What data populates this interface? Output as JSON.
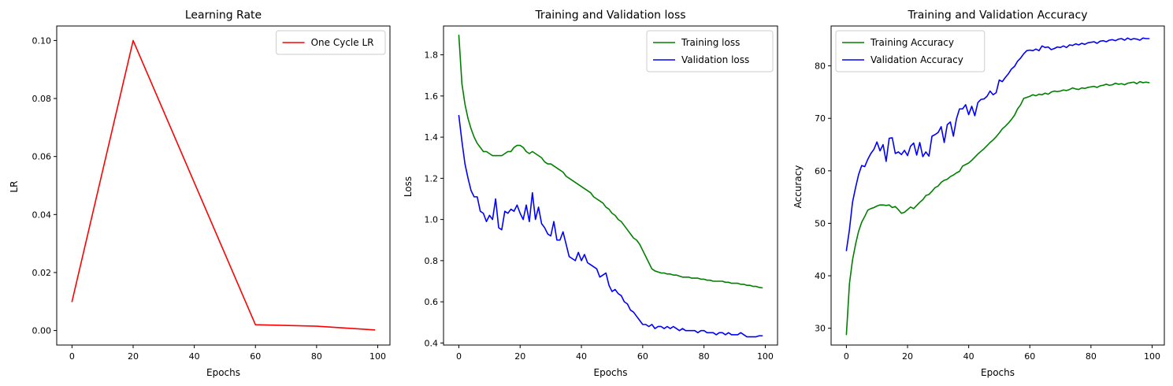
{
  "chart_data": [
    {
      "type": "line",
      "title": "Learning Rate",
      "xlabel": "Epochs",
      "ylabel": "LR",
      "xlim": [
        -5,
        104
      ],
      "ylim": [
        -0.005,
        0.105
      ],
      "xticks": [
        0,
        20,
        40,
        60,
        80,
        100
      ],
      "xtick_labels": [
        "0",
        "20",
        "40",
        "60",
        "80",
        "100"
      ],
      "yticks": [
        0.0,
        0.02,
        0.04,
        0.06,
        0.08,
        0.1
      ],
      "ytick_labels": [
        "0.00",
        "0.02",
        "0.04",
        "0.06",
        "0.08",
        "0.10"
      ],
      "legend_position": "top-right",
      "grid": false,
      "series": [
        {
          "name": "One Cycle LR",
          "color": "#ff0000",
          "x": [
            0,
            20,
            60,
            80,
            99
          ],
          "y": [
            0.01,
            0.1,
            0.002,
            0.0015,
            0.0002
          ]
        }
      ]
    },
    {
      "type": "line",
      "title": "Training and Validation loss",
      "xlabel": "Epochs",
      "ylabel": "Loss",
      "xlim": [
        -5,
        104
      ],
      "ylim": [
        0.39,
        1.94
      ],
      "xticks": [
        0,
        20,
        40,
        60,
        80,
        100
      ],
      "xtick_labels": [
        "0",
        "20",
        "40",
        "60",
        "80",
        "100"
      ],
      "yticks": [
        0.4,
        0.6,
        0.8,
        1.0,
        1.2,
        1.4,
        1.6,
        1.8
      ],
      "ytick_labels": [
        "0.4",
        "0.6",
        "0.8",
        "1.0",
        "1.2",
        "1.4",
        "1.6",
        "1.8"
      ],
      "legend_position": "top-right",
      "grid": false,
      "series": [
        {
          "name": "Training loss",
          "color": "#008000",
          "y": [
            1.895,
            1.66,
            1.56,
            1.49,
            1.44,
            1.4,
            1.37,
            1.35,
            1.33,
            1.33,
            1.32,
            1.31,
            1.31,
            1.31,
            1.31,
            1.32,
            1.33,
            1.33,
            1.35,
            1.36,
            1.36,
            1.35,
            1.33,
            1.32,
            1.33,
            1.32,
            1.31,
            1.3,
            1.28,
            1.27,
            1.27,
            1.26,
            1.25,
            1.24,
            1.23,
            1.21,
            1.2,
            1.19,
            1.18,
            1.17,
            1.16,
            1.15,
            1.14,
            1.13,
            1.11,
            1.1,
            1.09,
            1.08,
            1.06,
            1.05,
            1.03,
            1.02,
            1.0,
            0.99,
            0.97,
            0.95,
            0.93,
            0.91,
            0.9,
            0.88,
            0.85,
            0.82,
            0.79,
            0.76,
            0.75,
            0.745,
            0.74,
            0.74,
            0.735,
            0.735,
            0.73,
            0.73,
            0.725,
            0.72,
            0.72,
            0.72,
            0.715,
            0.715,
            0.715,
            0.71,
            0.71,
            0.705,
            0.705,
            0.7,
            0.7,
            0.7,
            0.7,
            0.695,
            0.695,
            0.69,
            0.69,
            0.69,
            0.685,
            0.685,
            0.68,
            0.68,
            0.675,
            0.675,
            0.67,
            0.668
          ]
        },
        {
          "name": "Validation loss",
          "color": "#0000ff",
          "y": [
            1.505,
            1.38,
            1.27,
            1.2,
            1.14,
            1.11,
            1.11,
            1.04,
            1.03,
            0.99,
            1.02,
            1.0,
            1.1,
            0.96,
            0.95,
            1.04,
            1.03,
            1.05,
            1.04,
            1.07,
            1.03,
            1.0,
            1.07,
            0.99,
            1.13,
            1.0,
            1.06,
            0.98,
            0.96,
            0.93,
            0.92,
            0.99,
            0.9,
            0.9,
            0.94,
            0.88,
            0.82,
            0.81,
            0.8,
            0.84,
            0.8,
            0.83,
            0.79,
            0.78,
            0.77,
            0.76,
            0.72,
            0.73,
            0.74,
            0.68,
            0.65,
            0.66,
            0.64,
            0.63,
            0.6,
            0.59,
            0.56,
            0.55,
            0.53,
            0.51,
            0.49,
            0.49,
            0.48,
            0.49,
            0.47,
            0.48,
            0.48,
            0.47,
            0.48,
            0.47,
            0.48,
            0.47,
            0.46,
            0.47,
            0.46,
            0.46,
            0.46,
            0.46,
            0.45,
            0.46,
            0.46,
            0.45,
            0.45,
            0.45,
            0.44,
            0.45,
            0.45,
            0.44,
            0.45,
            0.44,
            0.44,
            0.44,
            0.45,
            0.44,
            0.43,
            0.43,
            0.43,
            0.43,
            0.435,
            0.435
          ]
        }
      ]
    },
    {
      "type": "line",
      "title": "Training and Validation Accuracy",
      "xlabel": "Epochs",
      "ylabel": "Accuracy",
      "xlim": [
        -5,
        104
      ],
      "ylim": [
        26.8,
        87.6
      ],
      "xticks": [
        0,
        20,
        40,
        60,
        80,
        100
      ],
      "xtick_labels": [
        "0",
        "20",
        "40",
        "60",
        "80",
        "100"
      ],
      "yticks": [
        30,
        40,
        50,
        60,
        70,
        80
      ],
      "ytick_labels": [
        "30",
        "40",
        "50",
        "60",
        "70",
        "80"
      ],
      "legend_position": "top-left",
      "grid": false,
      "series": [
        {
          "name": "Training Accuracy",
          "color": "#008000",
          "y": [
            28.8,
            38.5,
            43.0,
            46.0,
            48.5,
            50.2,
            51.3,
            52.5,
            52.8,
            53.0,
            53.3,
            53.5,
            53.5,
            53.4,
            53.5,
            53.0,
            53.2,
            52.6,
            51.9,
            52.1,
            52.6,
            53.1,
            52.8,
            53.4,
            54.0,
            54.5,
            55.3,
            55.5,
            56.1,
            56.8,
            57.1,
            57.8,
            58.2,
            58.4,
            58.9,
            59.2,
            59.6,
            59.9,
            60.9,
            61.2,
            61.5,
            62.0,
            62.6,
            63.2,
            63.7,
            64.2,
            64.8,
            65.4,
            65.9,
            66.5,
            67.2,
            68.0,
            68.5,
            69.1,
            69.8,
            70.6,
            71.8,
            72.6,
            73.8,
            74.0,
            74.2,
            74.5,
            74.3,
            74.6,
            74.5,
            74.8,
            74.6,
            75.0,
            75.2,
            75.1,
            75.2,
            75.4,
            75.3,
            75.5,
            75.8,
            75.6,
            75.5,
            75.8,
            75.7,
            75.9,
            76.0,
            76.1,
            75.9,
            76.2,
            76.3,
            76.5,
            76.3,
            76.4,
            76.7,
            76.5,
            76.6,
            76.4,
            76.7,
            76.8,
            76.9,
            76.6,
            77.0,
            76.8,
            76.9,
            76.8
          ]
        },
        {
          "name": "Validation Accuracy",
          "color": "#0000ff",
          "y": [
            44.8,
            48.8,
            54.0,
            56.8,
            59.3,
            61.0,
            60.8,
            62.2,
            63.3,
            64.1,
            65.5,
            63.8,
            65.0,
            61.8,
            66.2,
            66.3,
            63.3,
            63.6,
            63.1,
            63.9,
            62.9,
            64.7,
            65.3,
            63.0,
            65.4,
            62.7,
            63.6,
            62.8,
            66.6,
            66.9,
            67.3,
            68.4,
            65.4,
            68.8,
            69.3,
            66.6,
            69.9,
            71.8,
            71.8,
            72.6,
            70.7,
            72.3,
            70.5,
            73.0,
            73.6,
            73.7,
            74.2,
            75.2,
            74.5,
            74.9,
            77.3,
            77.0,
            77.8,
            78.5,
            79.4,
            79.9,
            80.9,
            81.5,
            82.3,
            82.9,
            83.0,
            82.9,
            83.2,
            82.9,
            83.8,
            83.5,
            83.6,
            83.1,
            83.3,
            83.6,
            83.5,
            83.8,
            83.5,
            84.0,
            83.9,
            84.2,
            84.0,
            84.3,
            84.1,
            84.4,
            84.5,
            84.6,
            84.3,
            84.7,
            84.8,
            84.6,
            84.9,
            85.0,
            84.8,
            85.1,
            85.2,
            84.9,
            85.3,
            85.0,
            85.2,
            85.1,
            84.9,
            85.3,
            85.2,
            85.2
          ]
        }
      ]
    }
  ]
}
